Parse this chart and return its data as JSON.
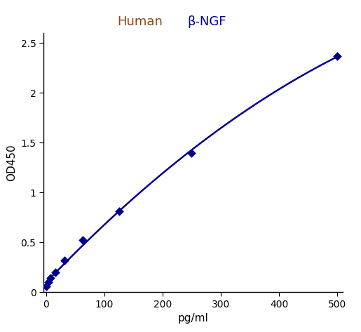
{
  "x_data": [
    0,
    3.9,
    7.8,
    15.6,
    31.2,
    62.5,
    125,
    250,
    500
  ],
  "y_data": [
    0.06,
    0.1,
    0.14,
    0.2,
    0.32,
    0.52,
    0.81,
    1.4,
    2.37
  ],
  "line_color": "#00008B",
  "marker_color": "#00008B",
  "title_human": "Human",
  "title_protein": "β-NGF",
  "title_human_color": "#8B4513",
  "title_protein_color": "#00008B",
  "xlabel": "pg/ml",
  "ylabel": "OD450",
  "xlim": [
    -5,
    510
  ],
  "ylim": [
    0,
    2.6
  ],
  "xticks": [
    0,
    100,
    200,
    300,
    400,
    500
  ],
  "yticks": [
    0,
    0.5,
    1.0,
    1.5,
    2.0,
    2.5
  ],
  "background_color": "#ffffff",
  "figsize": [
    5.15,
    4.73
  ],
  "dpi": 100
}
